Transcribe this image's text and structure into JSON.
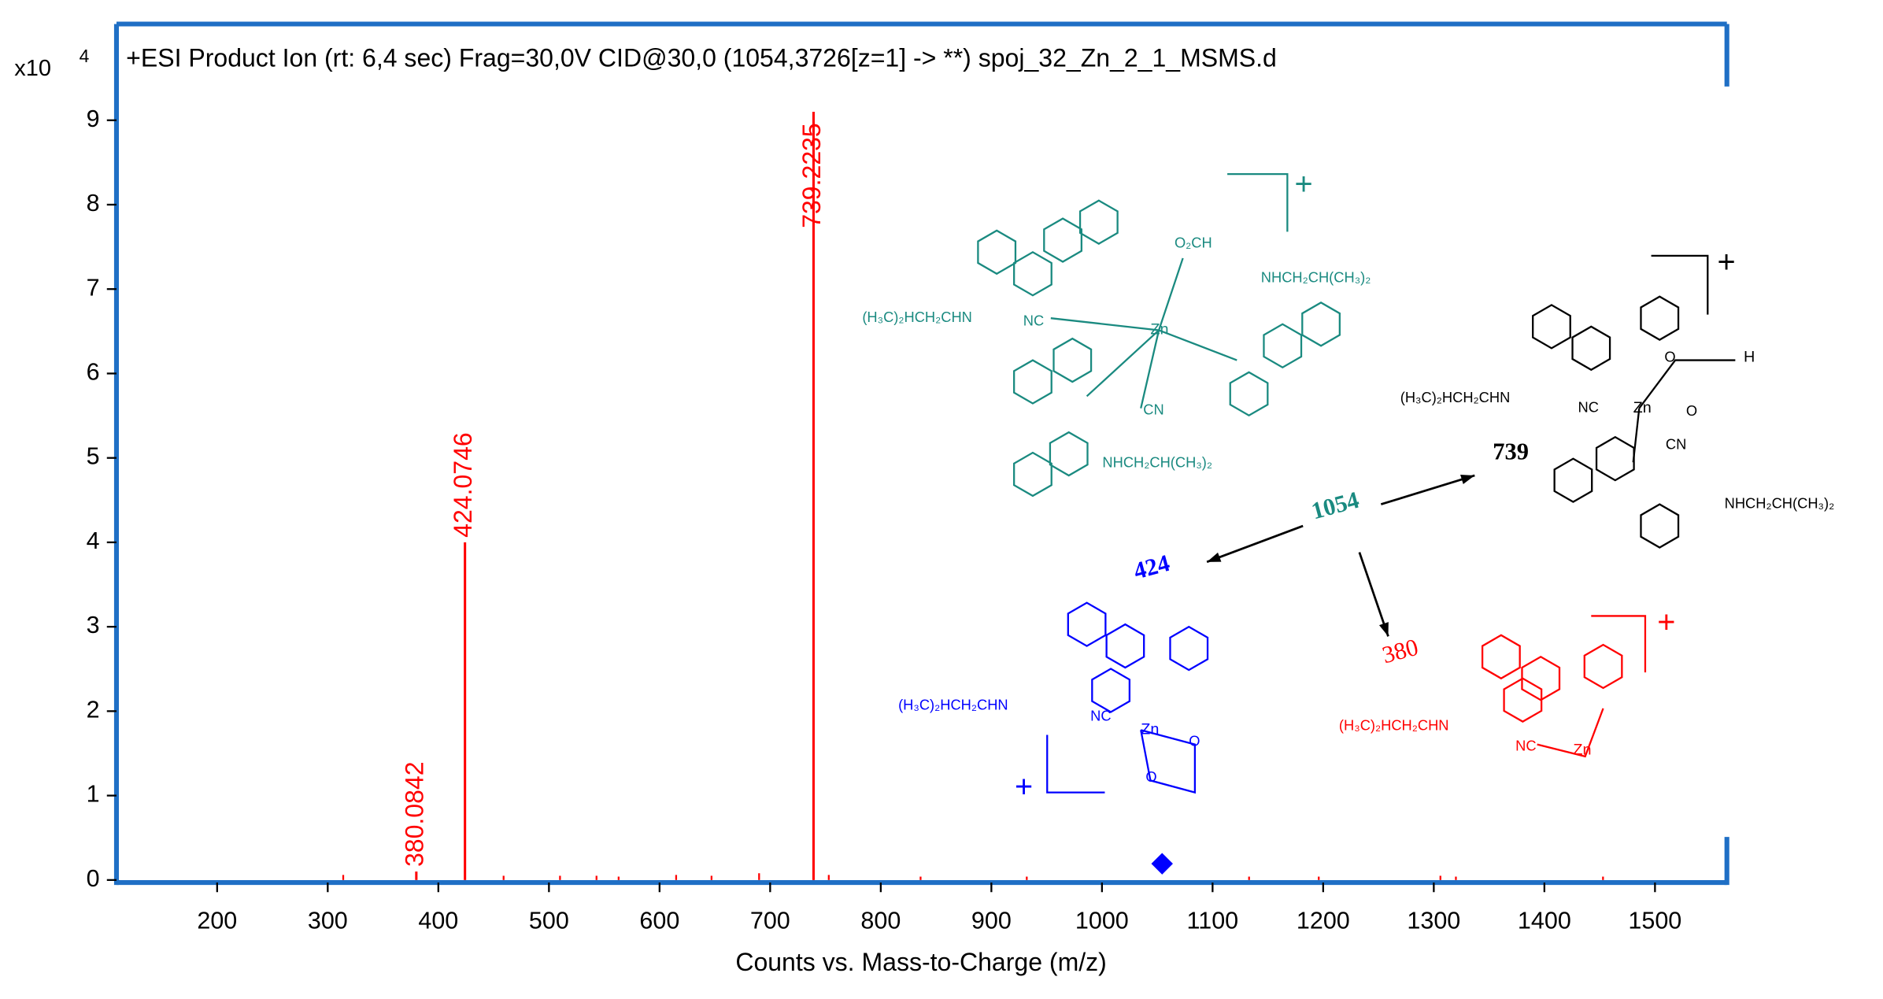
{
  "chart_data": {
    "type": "spectrum",
    "title": "+ESI Product Ion (rt: 6,4 sec) Frag=30,0V CID@30,0 (1054,3726[z=1] -> **) spoj_32_Zn_2_1_MSMS.d",
    "xlabel": "Counts vs. Mass-to-Charge (m/z)",
    "y_scale_label": "x10",
    "y_scale_exponent": "4",
    "color": "#ff0000",
    "frame_color": "#1f6fc5",
    "x": [
      380.0842,
      424.0746,
      739.2235
    ],
    "values": [
      0.1,
      4.0,
      9.1
    ],
    "minor_peaks": {
      "x": [
        314,
        459,
        510,
        543,
        563,
        615,
        647,
        690,
        753,
        836,
        932,
        1133,
        1196,
        1306,
        1320,
        1453
      ],
      "values": [
        0.06,
        0.05,
        0.05,
        0.05,
        0.04,
        0.06,
        0.05,
        0.08,
        0.06,
        0.04,
        0.04,
        0.04,
        0.04,
        0.05,
        0.04,
        0.04
      ]
    },
    "precursor": {
      "x": 1054.3726,
      "value": 0.15,
      "color": "#0000ff"
    },
    "xlim": [
      109,
      1565
    ],
    "ylim": [
      -0.03,
      10.14
    ],
    "xticks": [
      200,
      300,
      400,
      500,
      600,
      700,
      800,
      900,
      1000,
      1100,
      1200,
      1300,
      1400,
      1500
    ],
    "yticks": [
      0,
      1,
      2,
      3,
      4,
      5,
      6,
      7,
      8,
      9
    ],
    "annotations": [
      {
        "text": "1054",
        "color": "#1a8a80"
      },
      {
        "text": "739",
        "color": "#000000"
      },
      {
        "text": "424",
        "color": "#0000ff"
      },
      {
        "text": "380",
        "color": "#ff0000"
      },
      {
        "text": "+",
        "color": "#1a8a80"
      },
      {
        "text": "+",
        "color": "#000000"
      },
      {
        "text": "+",
        "color": "#ff0000"
      },
      {
        "text": "+",
        "color": "#0000ff"
      },
      {
        "text": "O₂CH",
        "color": "#1a8a80"
      },
      {
        "text": "NHCH₂CH(CH₃)₂",
        "color": "#1a8a80"
      },
      {
        "text": "(H₃C)₂HCH₂CHN",
        "color": "#1a8a80"
      },
      {
        "text": "NC",
        "color": "#1a8a80"
      },
      {
        "text": "Zn",
        "color": "#1a8a80"
      },
      {
        "text": "CN",
        "color": "#1a8a80"
      },
      {
        "text": "NHCH₂CH(CH₃)₂",
        "color": "#1a8a80"
      },
      {
        "text": "(H₃C)₂HCH₂CHN",
        "color": "#000000"
      },
      {
        "text": "NC",
        "color": "#000000"
      },
      {
        "text": "Zn",
        "color": "#000000"
      },
      {
        "text": "O",
        "color": "#000000"
      },
      {
        "text": "H",
        "color": "#000000"
      },
      {
        "text": "O",
        "color": "#000000"
      },
      {
        "text": "CN",
        "color": "#000000"
      },
      {
        "text": "NHCH₂CH(CH₃)₂",
        "color": "#000000"
      },
      {
        "text": "(H₃C)₂HCH₂CHN",
        "color": "#0000ff"
      },
      {
        "text": "NC",
        "color": "#0000ff"
      },
      {
        "text": "Zn",
        "color": "#0000ff"
      },
      {
        "text": "O",
        "color": "#0000ff"
      },
      {
        "text": "O",
        "color": "#0000ff"
      },
      {
        "text": "(H₃C)₂HCH₂CHN",
        "color": "#ff0000"
      },
      {
        "text": "NC",
        "color": "#ff0000"
      },
      {
        "text": "Zn",
        "color": "#ff0000"
      }
    ]
  }
}
